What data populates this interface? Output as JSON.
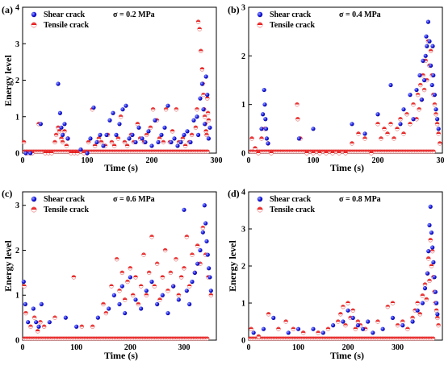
{
  "colors": {
    "shear": "#1515e0",
    "tensile": "#e01515",
    "axis": "#000000"
  },
  "chart_data": [
    {
      "type": "scatter",
      "panel_label": "(a)",
      "stress_label": "σ = 0.2 MPa",
      "xlabel": "Time (s)",
      "ylabel": "Energy level",
      "xlim": [
        0,
        300
      ],
      "ylim": [
        0,
        4
      ],
      "xticks": [
        "0",
        "100",
        "200",
        "300"
      ],
      "yticks": [
        "0",
        "1",
        "2",
        "3",
        "4"
      ],
      "legend_position": "top-left",
      "grid": false,
      "series": [
        {
          "name": "Shear crack",
          "x": [
            5,
            12,
            28,
            55,
            58,
            60,
            62,
            65,
            70,
            90,
            100,
            105,
            110,
            115,
            120,
            125,
            130,
            135,
            140,
            145,
            150,
            155,
            160,
            165,
            170,
            175,
            180,
            185,
            190,
            195,
            200,
            205,
            210,
            215,
            220,
            225,
            230,
            235,
            240,
            245,
            250,
            255,
            260,
            265,
            270,
            272,
            275,
            278,
            280,
            282,
            284,
            286,
            288,
            290
          ],
          "y": [
            0,
            0,
            0.8,
            1.9,
            1.1,
            0.7,
            0.5,
            0.8,
            0.4,
            0.1,
            0,
            0.4,
            1.25,
            0.3,
            0.5,
            0.2,
            0.5,
            0.9,
            1.1,
            0.5,
            0.8,
            1.2,
            1.3,
            0.4,
            0.5,
            0.3,
            0.7,
            0.4,
            0.3,
            0.6,
            0.2,
            0.9,
            0.3,
            0.5,
            0.7,
            1.3,
            0.3,
            0.4,
            0.2,
            0.3,
            0.5,
            0.6,
            0.3,
            0.9,
            1.0,
            0.5,
            1.5,
            1.9,
            1.2,
            0.8,
            2.1,
            1.6,
            0.4,
            0.7
          ]
        },
        {
          "name": "Tensile crack",
          "x": [
            2,
            8,
            15,
            25,
            35,
            40,
            45,
            50,
            52,
            55,
            57,
            60,
            62,
            65,
            68,
            70,
            75,
            80,
            85,
            95,
            100,
            102,
            108,
            112,
            118,
            122,
            128,
            132,
            138,
            142,
            148,
            152,
            158,
            162,
            168,
            172,
            178,
            182,
            188,
            192,
            198,
            202,
            208,
            212,
            218,
            222,
            228,
            232,
            238,
            242,
            248,
            252,
            258,
            262,
            268,
            270,
            272,
            274,
            276,
            278,
            279,
            280,
            281,
            282,
            283,
            284,
            285,
            286,
            287,
            288
          ],
          "y": [
            0.3,
            0,
            0,
            0.8,
            0,
            0,
            0,
            0.3,
            0.5,
            0.7,
            0.6,
            0.4,
            0.3,
            0.6,
            0.2,
            0.4,
            0,
            0,
            0,
            0,
            0,
            0.3,
            1.2,
            0.2,
            0.4,
            0.3,
            0.2,
            0.5,
            0.3,
            0.2,
            0.4,
            1.0,
            0.3,
            0.2,
            0.5,
            0.3,
            0.8,
            0.4,
            0.3,
            0.5,
            0.7,
            1.2,
            0.9,
            0.4,
            0.3,
            1.2,
            0.3,
            0.6,
            1.2,
            0.3,
            0.4,
            0.2,
            0.3,
            0.5,
            0.7,
            1.2,
            3.6,
            3.4,
            2.8,
            2.3,
            1.9,
            1.6,
            1.2,
            1.0,
            0.8,
            0.6,
            0.5,
            1.5,
            1.1,
            0.9
          ]
        }
      ]
    },
    {
      "type": "scatter",
      "panel_label": "(b)",
      "stress_label": "σ = 0.4 MPa",
      "xlabel": "Time (s)",
      "ylabel": "",
      "xlim": [
        0,
        300
      ],
      "ylim": [
        0,
        3
      ],
      "xticks": [
        "0",
        "100",
        "200",
        "300"
      ],
      "yticks": [
        "0",
        "1",
        "2",
        "3"
      ],
      "legend_position": "top-left",
      "grid": false,
      "series": [
        {
          "name": "Shear crack",
          "x": [
            20,
            22,
            24,
            25,
            26,
            27,
            28,
            30,
            78,
            100,
            160,
            180,
            200,
            220,
            235,
            240,
            250,
            255,
            260,
            265,
            268,
            270,
            272,
            274,
            275,
            276,
            278,
            280,
            282,
            284,
            285,
            286,
            288,
            290,
            292,
            294
          ],
          "y": [
            0.5,
            0.8,
            1.3,
            1.0,
            0.7,
            0.5,
            0.3,
            0.2,
            0.3,
            0.5,
            0.6,
            0.4,
            0.8,
            1.4,
            0.6,
            0.9,
            1.2,
            0.7,
            1.3,
            1.6,
            1.1,
            1.9,
            1.5,
            2.0,
            2.4,
            2.2,
            2.7,
            2.3,
            1.8,
            1.4,
            2.2,
            1.6,
            1.2,
            0.9,
            0.7,
            0.5
          ]
        },
        {
          "name": "Tensile crack",
          "x": [
            5,
            10,
            15,
            20,
            25,
            30,
            35,
            75,
            76,
            80,
            90,
            100,
            110,
            120,
            130,
            140,
            150,
            160,
            170,
            180,
            190,
            200,
            205,
            210,
            215,
            220,
            225,
            230,
            235,
            240,
            245,
            250,
            255,
            260,
            262,
            264,
            266,
            268,
            270,
            272,
            274,
            276,
            278,
            280,
            282,
            284,
            286,
            288,
            290,
            292,
            294,
            296
          ],
          "y": [
            0.3,
            0.1,
            0,
            0.3,
            0.5,
            0.2,
            0,
            1.0,
            0.7,
            0.3,
            0,
            0,
            0,
            0,
            0,
            0,
            0,
            0.2,
            0.4,
            0.3,
            0,
            0.6,
            0.3,
            0.5,
            0.4,
            0.6,
            0.3,
            0.5,
            0.7,
            0.4,
            0.8,
            0.6,
            1.0,
            0.7,
            1.2,
            0.9,
            1.4,
            1.1,
            1.6,
            1.3,
            1.9,
            1.5,
            2.3,
            1.8,
            2.1,
            1.6,
            1.2,
            1.0,
            0.8,
            0.6,
            0.4,
            0.2
          ]
        }
      ]
    },
    {
      "type": "scatter",
      "panel_label": "(c)",
      "stress_label": "σ = 0.6 MPa",
      "xlabel": "Time (s)",
      "ylabel": "Energy level",
      "xlim": [
        0,
        360
      ],
      "ylim": [
        0,
        3.3
      ],
      "xticks": [
        "0",
        "100",
        "200",
        "300"
      ],
      "yticks": [
        "0",
        "1",
        "2",
        "3"
      ],
      "legend_position": "top-left",
      "grid": false,
      "series": [
        {
          "name": "Shear crack",
          "x": [
            2,
            5,
            10,
            20,
            25,
            30,
            35,
            50,
            80,
            100,
            140,
            160,
            170,
            180,
            185,
            190,
            200,
            210,
            220,
            230,
            240,
            250,
            260,
            270,
            280,
            290,
            300,
            305,
            310,
            315,
            320,
            325,
            330,
            335,
            338,
            340,
            342,
            344,
            346,
            348,
            350
          ],
          "y": [
            1.3,
            0.8,
            0.4,
            0.7,
            0.4,
            0.3,
            0.8,
            0.4,
            0.5,
            0.3,
            0.5,
            0.7,
            1.0,
            0.8,
            1.2,
            0.6,
            1.4,
            0.9,
            0.7,
            1.1,
            1.3,
            0.8,
            1.0,
            0.6,
            1.2,
            0.9,
            2.9,
            1.1,
            0.8,
            1.3,
            1.5,
            1.7,
            2.0,
            2.4,
            3.0,
            2.6,
            2.2,
            1.9,
            1.6,
            1.4,
            1.1
          ]
        },
        {
          "name": "Tensile crack",
          "x": [
            3,
            6,
            15,
            22,
            28,
            33,
            40,
            60,
            95,
            110,
            130,
            150,
            155,
            165,
            175,
            180,
            185,
            190,
            195,
            200,
            205,
            210,
            215,
            220,
            225,
            230,
            235,
            240,
            245,
            250,
            255,
            260,
            265,
            270,
            275,
            280,
            285,
            290,
            295,
            300,
            305,
            310,
            315,
            320,
            325,
            330,
            335,
            340,
            345,
            350
          ],
          "y": [
            1.2,
            0.6,
            0.3,
            0.5,
            0.2,
            0.4,
            0.3,
            0.5,
            1.4,
            0.3,
            0.3,
            0.8,
            0.6,
            1.2,
            1.8,
            1.1,
            1.5,
            0.9,
            1.3,
            1.6,
            1.0,
            1.4,
            0.8,
            1.2,
            1.9,
            1.0,
            1.5,
            2.3,
            1.2,
            1.7,
            0.9,
            1.4,
            2.0,
            1.1,
            1.5,
            1.2,
            1.8,
            1.0,
            1.4,
            1.6,
            2.3,
            1.2,
            1.9,
            1.5,
            2.1,
            1.7,
            2.5,
            1.9,
            1.4,
            1.0
          ]
        }
      ]
    },
    {
      "type": "scatter",
      "panel_label": "(d)",
      "stress_label": "σ = 0.8 MPa",
      "xlabel": "Time (s)",
      "ylabel": "Energy level",
      "xlim": [
        0,
        390
      ],
      "ylim": [
        0,
        4
      ],
      "xticks": [
        "0",
        "100",
        "200",
        "300"
      ],
      "yticks": [
        "0",
        "1",
        "2",
        "3",
        "4"
      ],
      "legend_position": "top-left",
      "grid": false,
      "series": [
        {
          "name": "Shear crack",
          "x": [
            10,
            30,
            50,
            80,
            100,
            130,
            150,
            170,
            190,
            200,
            210,
            220,
            230,
            240,
            250,
            270,
            290,
            310,
            330,
            340,
            350,
            355,
            360,
            362,
            364,
            366,
            368,
            370,
            372,
            374,
            376,
            378,
            380
          ],
          "y": [
            0.2,
            0.3,
            0.6,
            0.2,
            0.3,
            0.3,
            0.2,
            0.4,
            0.5,
            0.8,
            0.6,
            0.4,
            0.3,
            0.5,
            0.2,
            0.3,
            0.6,
            0.4,
            0.5,
            0.8,
            1.0,
            1.4,
            1.8,
            2.4,
            3.1,
            3.6,
            2.9,
            2.5,
            2.1,
            1.7,
            1.3,
            1.0,
            0.7
          ]
        },
        {
          "name": "Tensile crack",
          "x": [
            5,
            20,
            40,
            60,
            75,
            90,
            110,
            140,
            160,
            180,
            185,
            190,
            195,
            200,
            205,
            210,
            215,
            220,
            225,
            235,
            260,
            280,
            290,
            300,
            310,
            320,
            330,
            335,
            340,
            345,
            350,
            355,
            358,
            360,
            362,
            364,
            366,
            368,
            370,
            372,
            374,
            376,
            378,
            380,
            382
          ],
          "y": [
            0.3,
            0.1,
            0.7,
            0.3,
            0.5,
            0.3,
            0.2,
            0.2,
            0.3,
            0.5,
            0.7,
            0.9,
            0.4,
            1.0,
            0.6,
            0.8,
            0.3,
            0.5,
            0.4,
            0.3,
            0.5,
            0.9,
            1.0,
            0.4,
            0.5,
            0.3,
            0.6,
            0.8,
            1.0,
            0.7,
            1.2,
            1.5,
            1.1,
            1.8,
            2.2,
            1.6,
            2.7,
            2.0,
            2.4,
            1.7,
            1.3,
            1.0,
            0.8,
            0.6,
            0.4
          ]
        }
      ]
    }
  ]
}
